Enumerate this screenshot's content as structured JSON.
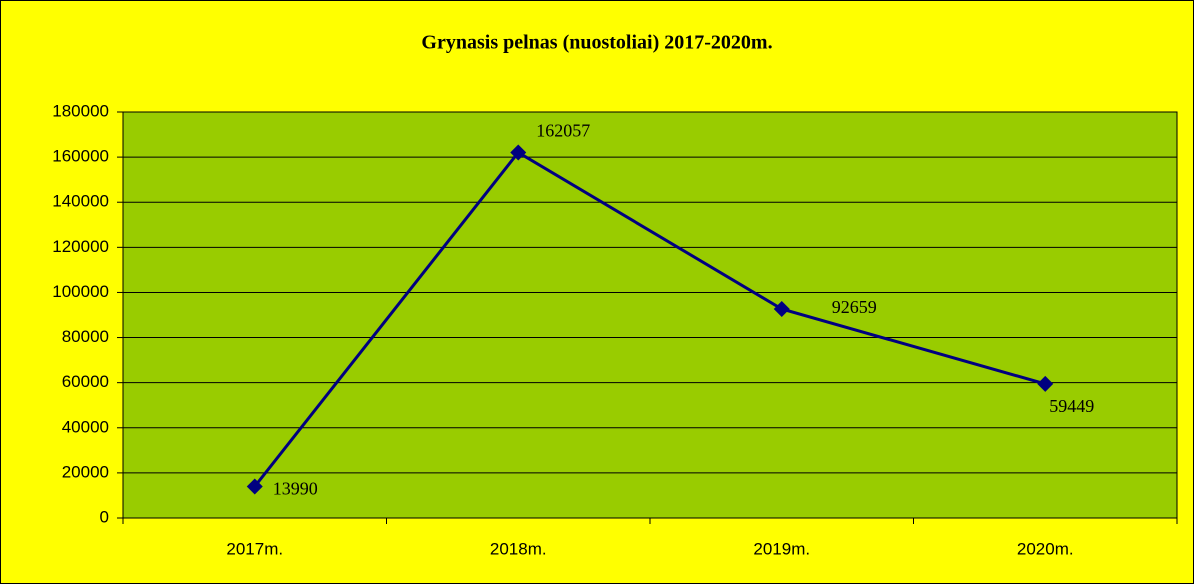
{
  "chart_data": {
    "type": "line",
    "title": "Grynasis pelnas (nuostoliai) 2017-2020m.",
    "categories": [
      "2017m.",
      "2018m.",
      "2019m.",
      "2020m."
    ],
    "values": [
      13990,
      162057,
      92659,
      59449
    ],
    "color": "#000080",
    "ylim": [
      0,
      180000
    ],
    "yticks": [
      0,
      20000,
      40000,
      60000,
      80000,
      100000,
      120000,
      140000,
      160000,
      180000
    ],
    "grid": true
  }
}
